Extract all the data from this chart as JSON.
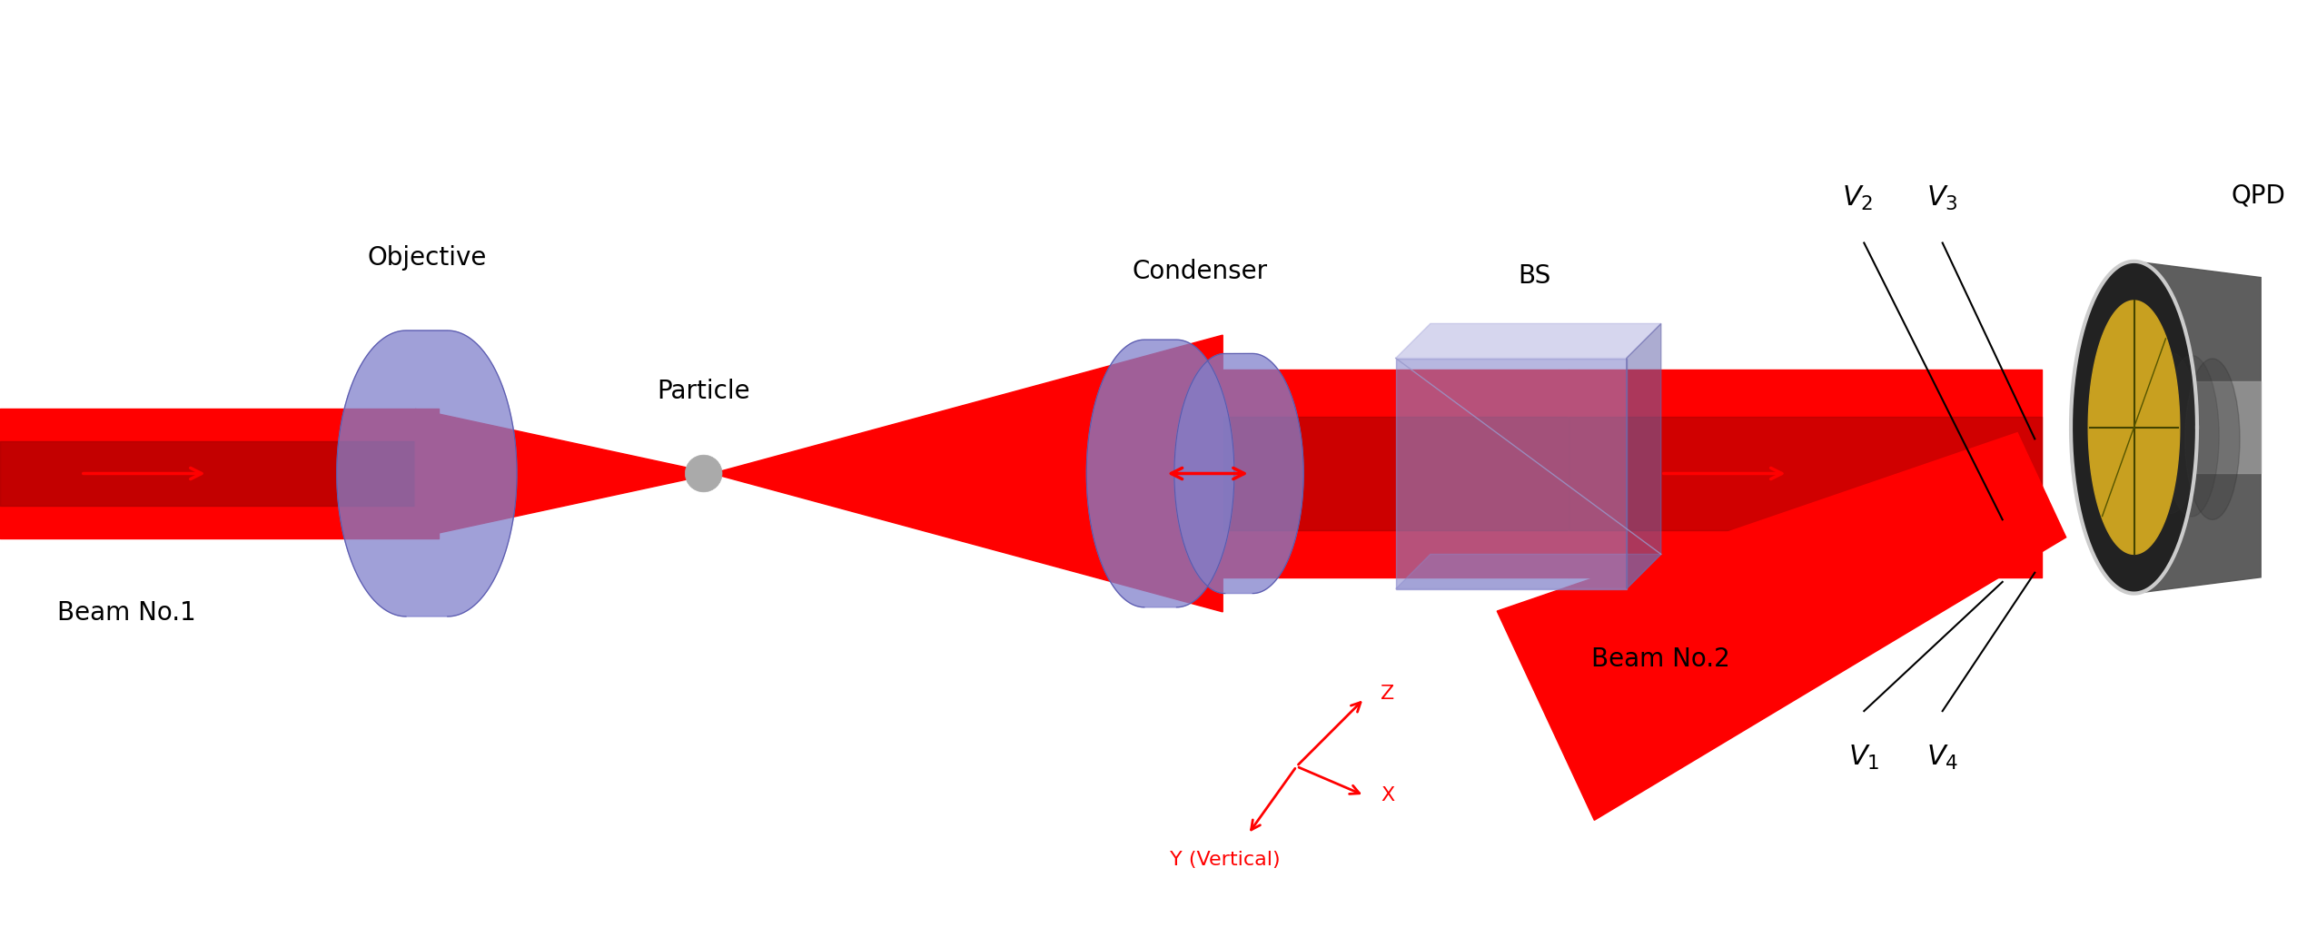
{
  "bg_color": "#ffffff",
  "beam_red": "#ff0000",
  "beam_dark_red": "#aa0000",
  "lens_color": "#8080cc",
  "lens_alpha": 0.75,
  "bs_color": "#8888cc",
  "bs_alpha": 0.6,
  "particle_color": "#aaaaaa",
  "qpd_gold": "#c8a020",
  "qpd_silver": "#888888",
  "qpd_dark": "#333333",
  "labels": {
    "objective": "Objective",
    "particle": "Particle",
    "condenser": "Condenser",
    "bs": "BS",
    "qpd": "QPD",
    "beam1": "Beam No.1",
    "beam2": "Beam No.2",
    "V1": "$V_1$",
    "V2": "$V_2$",
    "V3": "$V_3$",
    "V4": "$V_4$",
    "Z": "Z",
    "X": "X",
    "Y_vert": "Y (Vertical)"
  },
  "figsize": [
    25.4,
    10.43
  ],
  "dpi": 100
}
